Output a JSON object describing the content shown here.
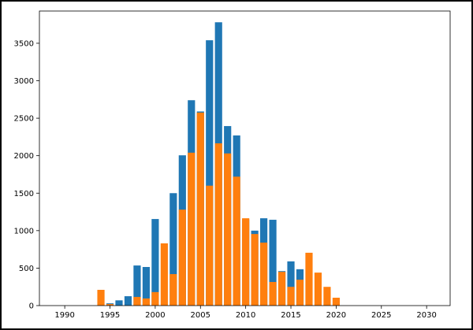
{
  "chart_data": {
    "type": "bar",
    "x": [
      1994,
      1995,
      1996,
      1997,
      1998,
      1999,
      2000,
      2001,
      2002,
      2003,
      2004,
      2005,
      2006,
      2007,
      2008,
      2009,
      2010,
      2011,
      2012,
      2013,
      2014,
      2015,
      2016,
      2017,
      2018,
      2019,
      2020
    ],
    "series": [
      {
        "color": "#1f77b4",
        "values": [
          0,
          30,
          70,
          125,
          535,
          515,
          1155,
          0,
          1500,
          2005,
          2740,
          2590,
          3540,
          3780,
          2395,
          2270,
          1150,
          1000,
          1165,
          1145,
          460,
          590,
          485,
          0,
          0,
          0,
          0
        ]
      },
      {
        "color": "#ff7f0e",
        "values": [
          210,
          20,
          0,
          0,
          115,
          95,
          180,
          830,
          420,
          1280,
          2040,
          2575,
          1600,
          2165,
          2030,
          1720,
          1165,
          955,
          840,
          315,
          450,
          250,
          345,
          705,
          440,
          250,
          105
        ]
      }
    ],
    "bar_width": 0.8,
    "xlim": [
      1987.2,
      2032.6
    ],
    "xticks": [
      1990,
      1995,
      2000,
      2005,
      2010,
      2015,
      2020,
      2025,
      2030
    ],
    "ylim": [
      0,
      3930
    ],
    "yticks": [
      0,
      500,
      1000,
      1500,
      2000,
      2500,
      3000,
      3500
    ]
  }
}
